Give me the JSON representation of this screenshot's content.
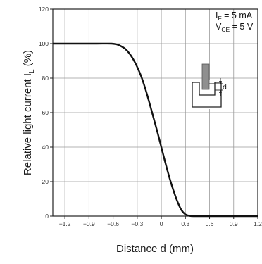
{
  "chart_data": {
    "type": "line",
    "xlabel": "Distance d (mm)",
    "ylabel_main": "Relative light current ",
    "ylabel_symbol": "I",
    "ylabel_symbol_sub": "L",
    "ylabel_unit": " (%)",
    "xlim": [
      -1.35,
      1.2
    ],
    "ylim": [
      0,
      120
    ],
    "x_ticks": [
      -1.2,
      -0.9,
      -0.6,
      -0.3,
      0,
      0.3,
      0.6,
      0.9,
      1.2
    ],
    "x_tick_labels": [
      "−1.2",
      "−0.9",
      "−0.6",
      "−0.3",
      "0",
      "0.3",
      "0.6",
      "0.9",
      "1.2"
    ],
    "y_ticks": [
      0,
      20,
      40,
      60,
      80,
      100,
      120
    ],
    "y_tick_labels": [
      "0",
      "20",
      "40",
      "60",
      "80",
      "100",
      "120"
    ],
    "grid": true,
    "conditions": [
      {
        "symbol": "I",
        "sub": "F",
        "text": " = 5 mA"
      },
      {
        "symbol": "V",
        "sub": "CE",
        "text": " = 5 V"
      }
    ],
    "inset_label": "d",
    "series": [
      {
        "color": "#111111",
        "points": [
          [
            -1.35,
            100
          ],
          [
            -1.2,
            100
          ],
          [
            -1.0,
            100
          ],
          [
            -0.8,
            100
          ],
          [
            -0.62,
            100
          ],
          [
            -0.55,
            99.5
          ],
          [
            -0.5,
            98.5
          ],
          [
            -0.45,
            97
          ],
          [
            -0.4,
            94.5
          ],
          [
            -0.35,
            91
          ],
          [
            -0.3,
            86.5
          ],
          [
            -0.25,
            81
          ],
          [
            -0.2,
            74
          ],
          [
            -0.15,
            66
          ],
          [
            -0.1,
            57.5
          ],
          [
            -0.05,
            49
          ],
          [
            0,
            40
          ],
          [
            0.05,
            31
          ],
          [
            0.1,
            22.5
          ],
          [
            0.15,
            15
          ],
          [
            0.2,
            8.5
          ],
          [
            0.25,
            3.5
          ],
          [
            0.3,
            1
          ],
          [
            0.35,
            0.2
          ],
          [
            0.4,
            0
          ],
          [
            0.6,
            0
          ],
          [
            0.9,
            0
          ],
          [
            1.2,
            0
          ]
        ]
      }
    ]
  }
}
